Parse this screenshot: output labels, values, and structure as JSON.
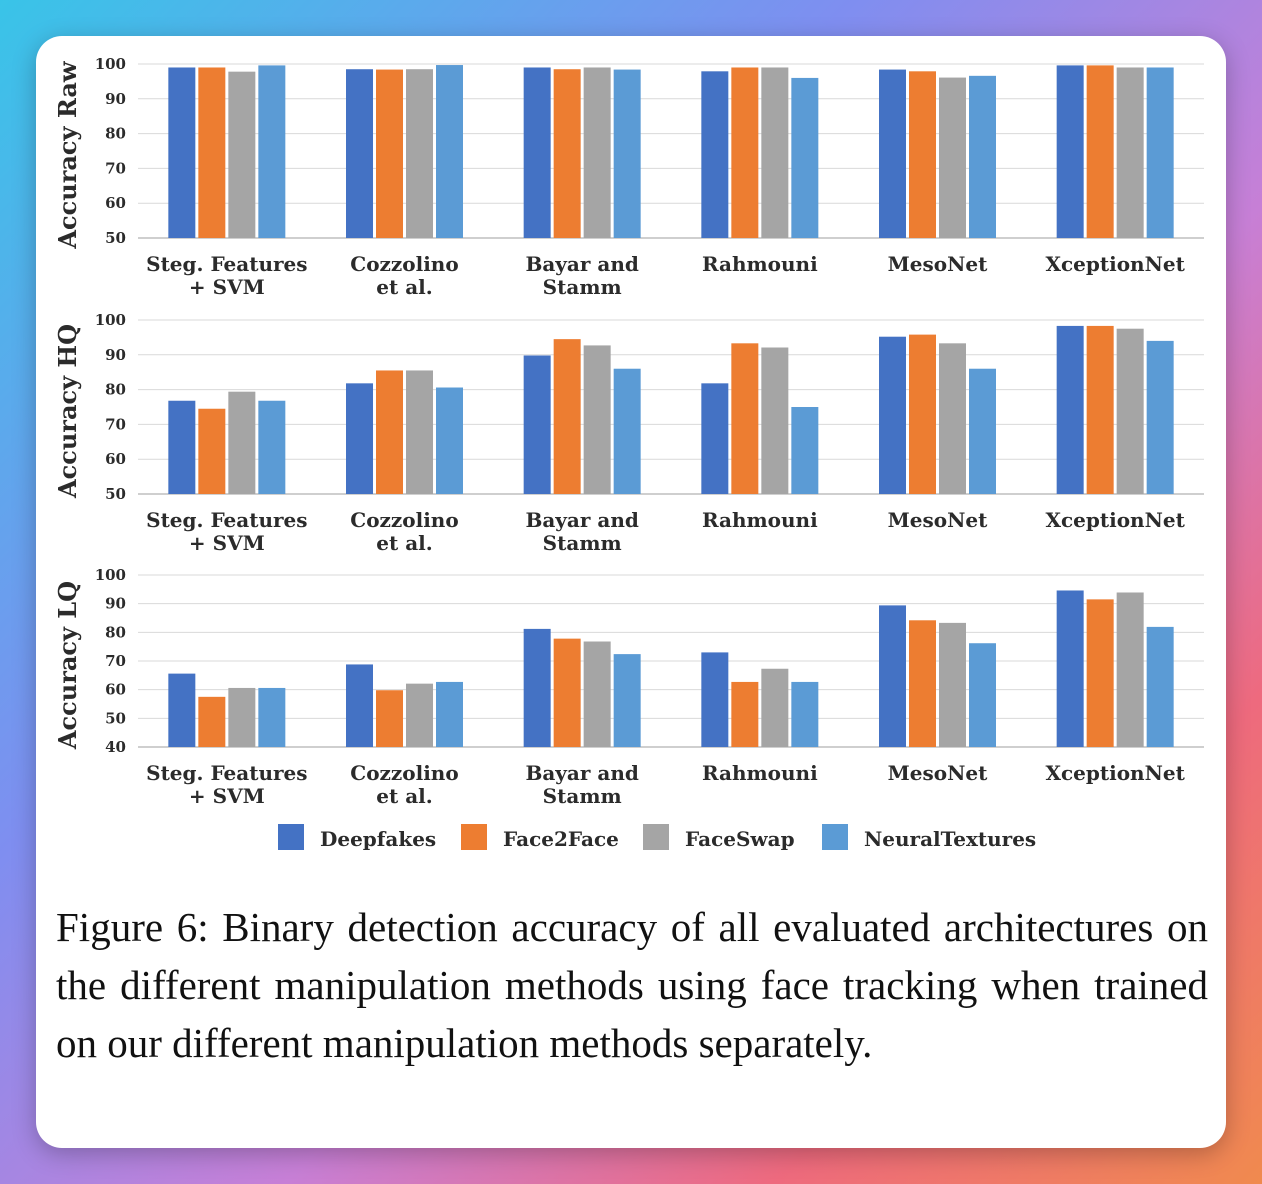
{
  "caption": "Figure 6: Binary detection accuracy of all evaluated architectures on the different manipulation methods using face tracking when trained on our different manipulation methods separately.",
  "colors": [
    "#4472c4",
    "#ed7d31",
    "#a5a5a5",
    "#5b9bd5"
  ],
  "legend": [
    "Deepfakes",
    "Face2Face",
    "FaceSwap",
    "NeuralTextures"
  ],
  "chart_data": [
    {
      "type": "bar",
      "ylabel": "Accuracy Raw",
      "ylim": [
        50,
        100
      ],
      "yticks": [
        50,
        60,
        70,
        80,
        90,
        100
      ],
      "categories": [
        [
          "Steg. Features",
          "+ SVM"
        ],
        [
          "Cozzolino",
          "et al."
        ],
        [
          "Bayar and",
          "Stamm"
        ],
        [
          "Rahmouni"
        ],
        [
          "MesoNet"
        ],
        [
          "XceptionNet"
        ]
      ],
      "series": [
        {
          "name": "Deepfakes",
          "values": [
            99.0,
            98.5,
            99.0,
            97.9,
            98.4,
            99.6
          ]
        },
        {
          "name": "Face2Face",
          "values": [
            99.0,
            98.4,
            98.5,
            99.0,
            97.9,
            99.6
          ]
        },
        {
          "name": "FaceSwap",
          "values": [
            97.8,
            98.5,
            99.0,
            99.0,
            96.1,
            99.0
          ]
        },
        {
          "name": "NeuralTextures",
          "values": [
            99.6,
            99.7,
            98.4,
            96.0,
            96.6,
            99.0
          ]
        }
      ],
      "grid": true
    },
    {
      "type": "bar",
      "ylabel": "Accuracy HQ",
      "ylim": [
        50,
        100
      ],
      "yticks": [
        50,
        60,
        70,
        80,
        90,
        100
      ],
      "categories": [
        [
          "Steg. Features",
          "+ SVM"
        ],
        [
          "Cozzolino",
          "et al."
        ],
        [
          "Bayar and",
          "Stamm"
        ],
        [
          "Rahmouni"
        ],
        [
          "MesoNet"
        ],
        [
          "XceptionNet"
        ]
      ],
      "series": [
        {
          "name": "Deepfakes",
          "values": [
            76.8,
            81.8,
            89.8,
            81.8,
            95.2,
            98.3
          ]
        },
        {
          "name": "Face2Face",
          "values": [
            74.5,
            85.5,
            94.5,
            93.3,
            95.8,
            98.3
          ]
        },
        {
          "name": "FaceSwap",
          "values": [
            79.4,
            85.5,
            92.7,
            92.1,
            93.3,
            97.5
          ]
        },
        {
          "name": "NeuralTextures",
          "values": [
            76.8,
            80.6,
            86.0,
            75.0,
            86.0,
            94.0
          ]
        }
      ],
      "grid": true
    },
    {
      "type": "bar",
      "ylabel": "Accuracy LQ",
      "ylim": [
        40,
        100
      ],
      "yticks": [
        40,
        50,
        60,
        70,
        80,
        90,
        100
      ],
      "categories": [
        [
          "Steg. Features",
          "+ SVM"
        ],
        [
          "Cozzolino",
          "et al."
        ],
        [
          "Bayar and",
          "Stamm"
        ],
        [
          "Rahmouni"
        ],
        [
          "MesoNet"
        ],
        [
          "XceptionNet"
        ]
      ],
      "series": [
        {
          "name": "Deepfakes",
          "values": [
            65.6,
            68.8,
            81.2,
            73.0,
            89.4,
            94.6
          ]
        },
        {
          "name": "Face2Face",
          "values": [
            57.5,
            59.8,
            77.8,
            62.7,
            84.2,
            91.5
          ]
        },
        {
          "name": "FaceSwap",
          "values": [
            60.6,
            62.1,
            76.8,
            67.3,
            83.3,
            93.9
          ]
        },
        {
          "name": "NeuralTextures",
          "values": [
            60.6,
            62.7,
            72.4,
            62.7,
            76.2,
            81.9
          ]
        }
      ],
      "grid": true
    }
  ]
}
